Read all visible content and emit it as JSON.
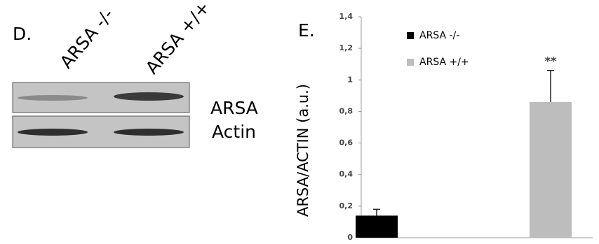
{
  "panel_d": {
    "label": "D.",
    "lanes": [
      "ARSA -/-",
      "ARSA +/+"
    ],
    "bands": [
      "ARSA",
      "Actin"
    ]
  },
  "chart_data": {
    "type": "bar",
    "label": "E.",
    "y_label": "ARSA/ACTIN (a.u.)",
    "categories": [
      null,
      null
    ],
    "series": [
      {
        "name": "ARSA -/-",
        "color": "#000000",
        "values": [
          0.14,
          null
        ],
        "errors": [
          0.04,
          null
        ]
      },
      {
        "name": "ARSA +/+",
        "color": "#bdbdbd",
        "values": [
          null,
          0.86
        ],
        "errors": [
          null,
          0.2
        ]
      }
    ],
    "annotations": [
      {
        "text": "**",
        "category": 1
      }
    ],
    "ylim": [
      0,
      1.4
    ],
    "yticks": [
      0,
      {
        "value": 0.2,
        "label": "0,2"
      },
      {
        "value": 0.4,
        "label": "0,4"
      },
      {
        "value": 0.6,
        "label": "0,6"
      },
      {
        "value": 0.8,
        "label": "0,8"
      },
      1,
      {
        "value": 1.2,
        "label": "1,2"
      },
      {
        "value": 1.4,
        "label": "1,4"
      }
    ]
  }
}
